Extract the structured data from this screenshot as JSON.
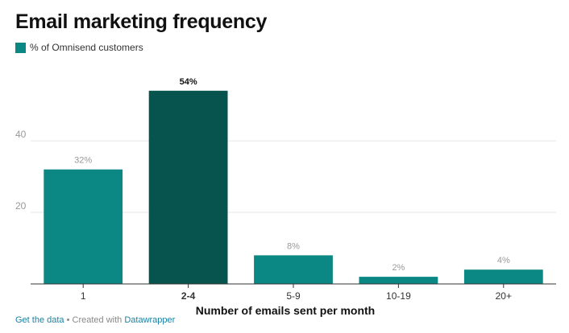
{
  "title": "Email marketing frequency",
  "colors": {
    "bar": "#0b8784",
    "highlight": "#07544f",
    "grid": "#e6e6e6",
    "axis": "#333333",
    "label": "#999999",
    "link": "#1d81a2"
  },
  "chart_data": {
    "type": "bar",
    "categories": [
      "1",
      "2-4",
      "5-9",
      "10-19",
      "20+"
    ],
    "series": [
      {
        "name": "% of Omnisend customers",
        "values": [
          32,
          54,
          8,
          2,
          4
        ]
      }
    ],
    "value_labels": [
      "32%",
      "54%",
      "8%",
      "2%",
      "4%"
    ],
    "highlight_category": "2-4",
    "xlabel": "Number of emails sent per month",
    "ylabel": "",
    "ylim": [
      0,
      58
    ],
    "yticks": [
      20,
      40
    ],
    "grid": true,
    "legend_position": "top-left"
  },
  "footer": {
    "get_data": "Get the data",
    "separator": " • Created with ",
    "credit": "Datawrapper"
  }
}
